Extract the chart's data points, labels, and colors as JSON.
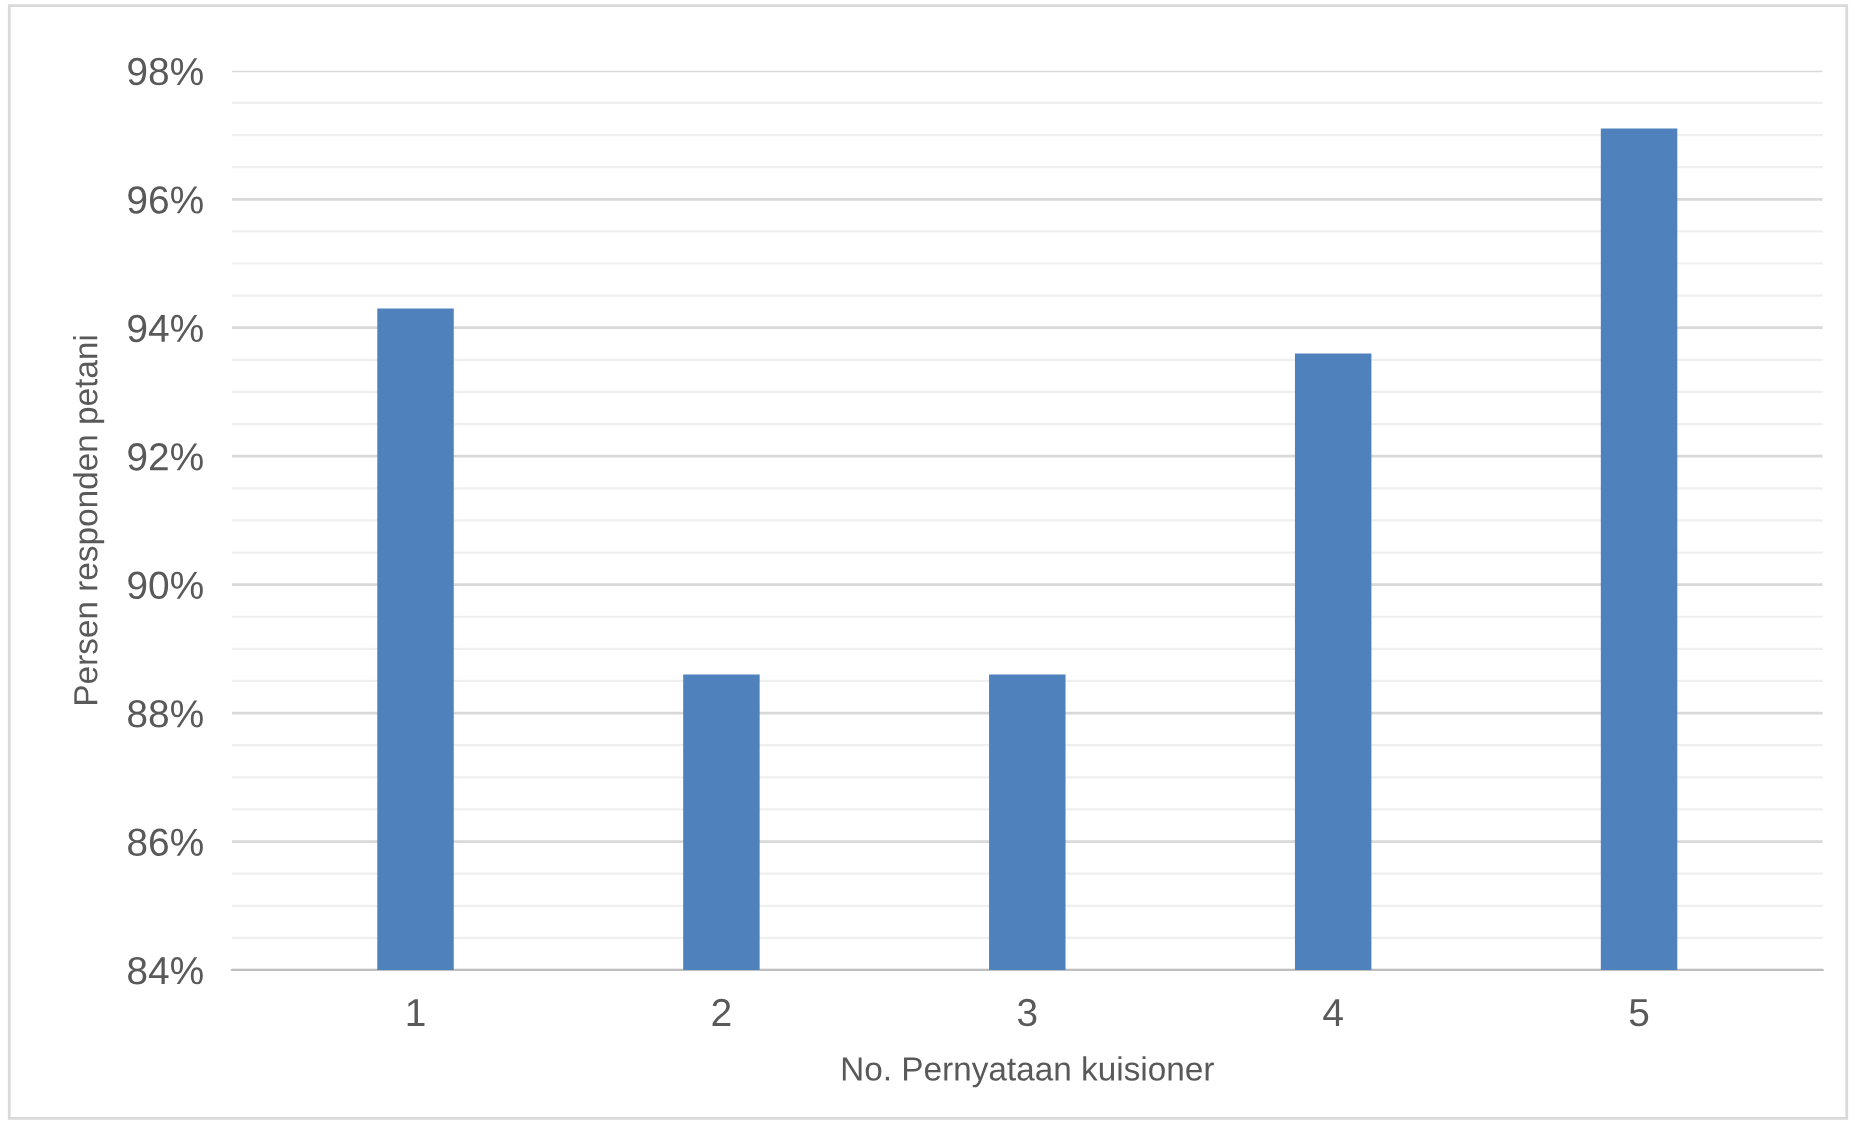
{
  "chart_data": {
    "type": "bar",
    "xlabel": "No. Pernyataan kuisioner",
    "ylabel": "Persen responden petani",
    "categories": [
      "1",
      "2",
      "3",
      "4",
      "5"
    ],
    "values": [
      94.3,
      88.6,
      88.6,
      93.6,
      97.1
    ],
    "color": "#4f81bd",
    "ylim": [
      84,
      98
    ],
    "yticks": [
      {
        "value": 84,
        "label": "84%"
      },
      {
        "value": 86,
        "label": "86%"
      },
      {
        "value": 88,
        "label": "88%"
      },
      {
        "value": 90,
        "label": "90%"
      },
      {
        "value": 92,
        "label": "92%"
      },
      {
        "value": 94,
        "label": "94%"
      },
      {
        "value": 96,
        "label": "96%"
      },
      {
        "value": 98,
        "label": "98%"
      }
    ],
    "grid": "y"
  }
}
